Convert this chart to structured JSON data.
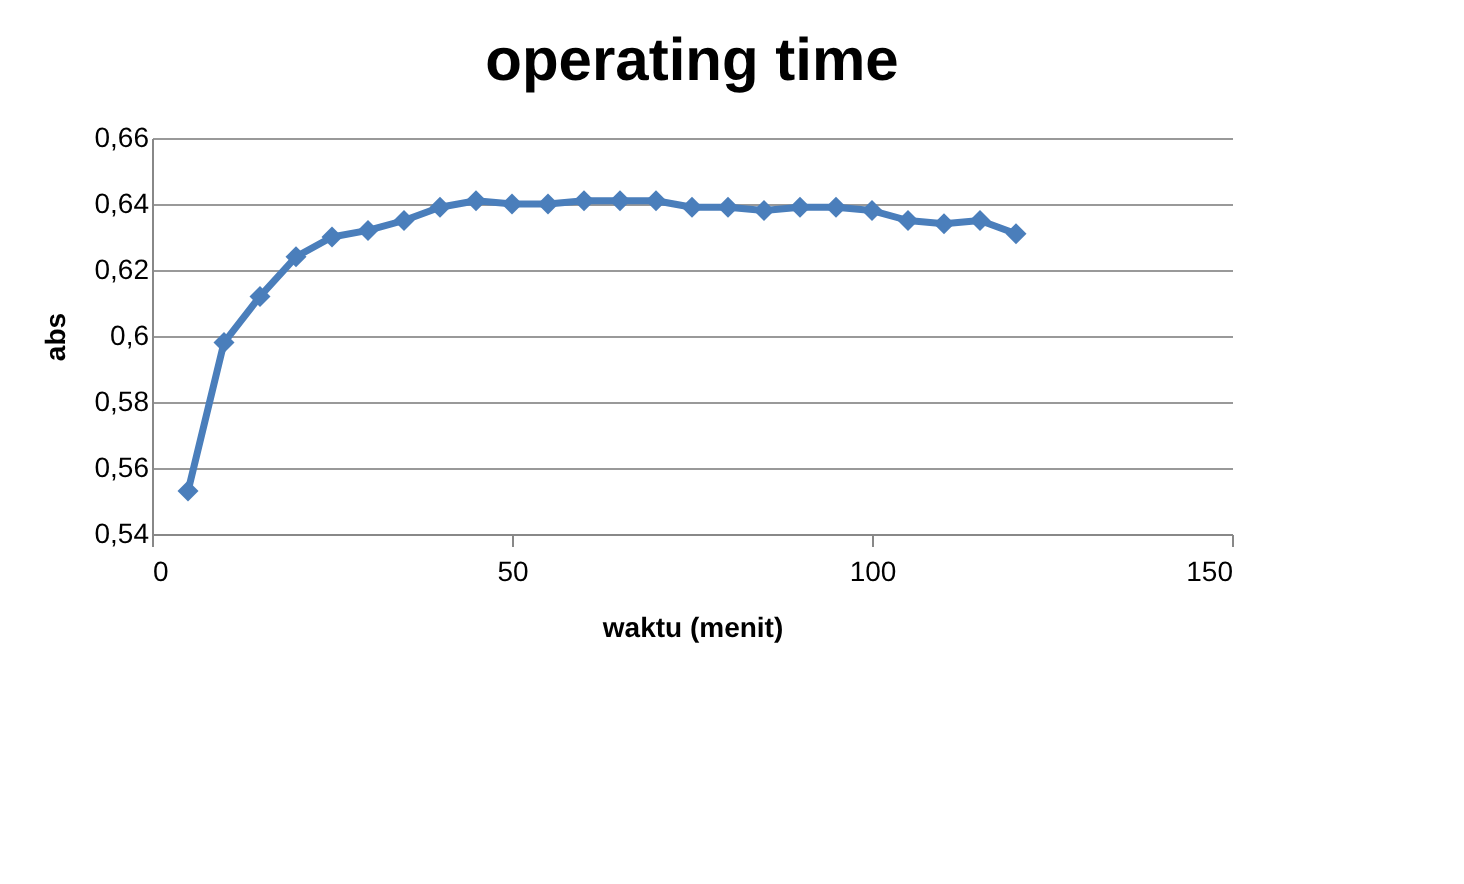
{
  "chart_data": {
    "type": "line",
    "title": "operating time",
    "xlabel": "waktu (menit)",
    "ylabel": "abs",
    "x": [
      5,
      10,
      15,
      20,
      25,
      30,
      35,
      40,
      45,
      50,
      55,
      60,
      65,
      70,
      75,
      80,
      85,
      90,
      95,
      100,
      105,
      110,
      115,
      120
    ],
    "series": [
      {
        "color": "#4a7ebb",
        "values": [
          0.553,
          0.598,
          0.612,
          0.624,
          0.63,
          0.632,
          0.635,
          0.639,
          0.641,
          0.64,
          0.64,
          0.641,
          0.641,
          0.641,
          0.639,
          0.639,
          0.638,
          0.639,
          0.639,
          0.638,
          0.635,
          0.634,
          0.635,
          0.631
        ]
      }
    ],
    "xlim": [
      0,
      150
    ],
    "xticks": [
      0,
      50,
      100,
      150
    ],
    "ylim": [
      0.54,
      0.66
    ],
    "yticks": [
      {
        "value": 0.54,
        "label": "0,54"
      },
      {
        "value": 0.56,
        "label": "0,56"
      },
      {
        "value": 0.58,
        "label": "0,58"
      },
      {
        "value": 0.6,
        "label": "0,6"
      },
      {
        "value": 0.62,
        "label": "0,62"
      },
      {
        "value": 0.64,
        "label": "0,64"
      },
      {
        "value": 0.66,
        "label": "0,66"
      }
    ],
    "grid": "y",
    "marker": "diamond",
    "line_style": "solid",
    "legend": false
  }
}
